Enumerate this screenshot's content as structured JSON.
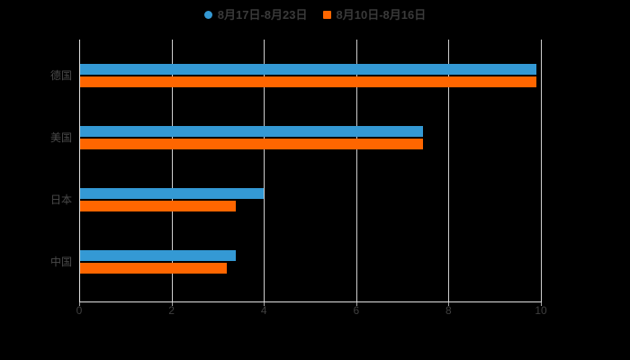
{
  "colors": {
    "background": "#000000",
    "bar_blue": "#3499d4",
    "bar_orange": "#ff6600",
    "grid": "#cfcfcf",
    "axis": "#e2e2e2",
    "tick": "#a8a8a8",
    "tick_text": "#3f3f3f",
    "category_text": "#4a4a4a",
    "legend_text": "#3a3a3a"
  },
  "legend": {
    "items": [
      {
        "label": "8月17日-8月23日",
        "color": "#3499d4",
        "shape": "circle"
      },
      {
        "label": "8月10日-8月16日",
        "color": "#ff6600",
        "shape": "square"
      }
    ]
  },
  "chart_data": {
    "type": "bar",
    "orientation": "horizontal",
    "title": "",
    "xlabel": "",
    "ylabel": "",
    "categories": [
      "德国",
      "美国",
      "日本",
      "中国"
    ],
    "series": [
      {
        "name": "8月17日-8月23日",
        "color": "#3499d4",
        "values": [
          9.9,
          7.45,
          4.0,
          3.4
        ]
      },
      {
        "name": "8月10日-8月16日",
        "color": "#ff6600",
        "values": [
          9.9,
          7.45,
          3.4,
          3.2
        ]
      }
    ],
    "xlim": [
      0,
      10
    ],
    "xticks": [
      0,
      2,
      4,
      6,
      8,
      10
    ],
    "grid": true,
    "legend_position": "top"
  }
}
